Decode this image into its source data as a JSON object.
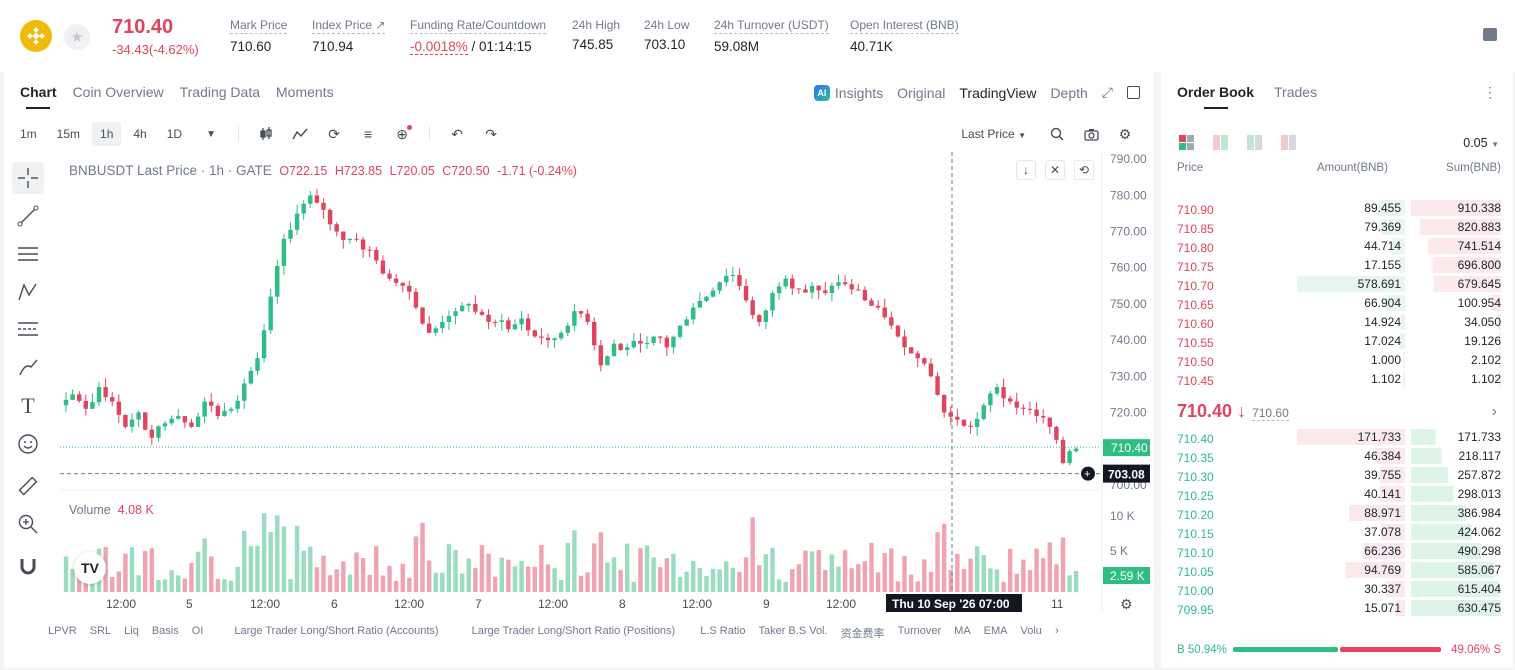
{
  "header": {
    "last_price": "710.40",
    "change": "-34.43(-4.62%)",
    "stats": [
      {
        "label": "Mark Price",
        "value": "710.60"
      },
      {
        "label": "Index Price ↗",
        "value": "710.94"
      },
      {
        "label": "Funding Rate/Countdown",
        "value_red": "-0.0018%",
        "value": " / 01:14:15"
      },
      {
        "label": "24h High",
        "value": "745.85"
      },
      {
        "label": "24h Low",
        "value": "703.10"
      },
      {
        "label": "24h Turnover (USDT)",
        "value": "59.08M"
      },
      {
        "label": "Open Interest (BNB)",
        "value": "40.71K"
      }
    ]
  },
  "chart_tabs": [
    "Chart",
    "Coin Overview",
    "Trading Data",
    "Moments"
  ],
  "view_tabs": [
    "Insights",
    "Original",
    "TradingView",
    "Depth"
  ],
  "ai_badge": "AI",
  "intervals": [
    "1m",
    "15m",
    "1h",
    "4h",
    "1D"
  ],
  "price_type": "Last Price",
  "ohlc": {
    "symbol": "BNBUSDT Last Price · 1h · GATE",
    "o": "O722.15",
    "h": "H723.85",
    "l": "L720.05",
    "c": "C720.50",
    "chg": "-1.71 (-0.24%)"
  },
  "volume_label": "Volume",
  "volume_value": "4.08 K",
  "tv_logo": "TV",
  "chart_data": {
    "type": "candlestick",
    "y_ticks": [
      "790.00",
      "780.00",
      "770.00",
      "760.00",
      "750.00",
      "740.00",
      "730.00",
      "720.00",
      "710.00",
      "700.00"
    ],
    "last_price_label": "710.40",
    "crosshair_price": "703.08",
    "vol_ticks": [
      "10 K",
      "5 K"
    ],
    "vol_last": "2.59 K",
    "x_ticks": [
      "12:00",
      "5",
      "12:00",
      "6",
      "12:00",
      "7",
      "12:00",
      "8",
      "12:00",
      "9",
      "12:00",
      "10",
      "11"
    ],
    "crosshair_time": "Thu 10 Sep '26   07:00",
    "close_path": [
      722,
      725,
      721,
      727,
      723,
      716,
      720,
      713,
      717,
      719,
      716,
      723,
      719,
      721,
      728,
      735,
      752,
      768,
      775,
      780,
      776,
      770,
      768,
      765,
      762,
      757,
      755,
      749,
      742,
      745,
      748,
      750,
      747,
      745,
      743,
      746,
      741,
      740,
      742,
      748,
      745,
      733,
      739,
      738,
      739,
      741,
      738,
      744,
      749,
      752,
      756,
      758,
      751,
      745,
      753,
      757,
      754,
      755,
      753,
      756,
      754,
      751,
      749,
      744,
      738,
      735,
      730,
      720,
      718,
      716,
      722,
      727,
      723,
      721,
      719,
      716,
      706,
      710
    ]
  },
  "indicators": [
    "LPVR",
    "SRL",
    "Liq",
    "Basis",
    "OI",
    "Large Trader Long/Short Ratio (Accounts)",
    "Large Trader Long/Short Ratio (Positions)",
    "L.S Ratio",
    "Taker B.S Vol.",
    "资金费率",
    "Turnover",
    "MA",
    "EMA",
    "Volu"
  ],
  "orderbook": {
    "tabs": [
      "Order Book",
      "Trades"
    ],
    "tick": "0.05",
    "headers": [
      "Price",
      "Amount(BNB)",
      "Sum(BNB)"
    ],
    "asks": [
      {
        "price": "710.90",
        "amount": "89.455",
        "sum": "910.338",
        "af": 0.25,
        "sf": 1.0
      },
      {
        "price": "710.85",
        "amount": "79.369",
        "sum": "820.883",
        "af": 0.22,
        "sf": 0.9
      },
      {
        "price": "710.80",
        "amount": "44.714",
        "sum": "741.514",
        "af": 0.12,
        "sf": 0.81
      },
      {
        "price": "710.75",
        "amount": "17.155",
        "sum": "696.800",
        "af": 0.05,
        "sf": 0.76
      },
      {
        "price": "710.70",
        "amount": "578.691",
        "sum": "679.645",
        "af": 1.0,
        "sf": 0.75
      },
      {
        "price": "710.65",
        "amount": "66.904",
        "sum": "100.954",
        "af": 0.18,
        "sf": 0.11
      },
      {
        "price": "710.60",
        "amount": "14.924",
        "sum": "34.050",
        "af": 0.04,
        "sf": 0.04
      },
      {
        "price": "710.55",
        "amount": "17.024",
        "sum": "19.126",
        "af": 0.05,
        "sf": 0.02
      },
      {
        "price": "710.50",
        "amount": "1.000",
        "sum": "2.102",
        "af": 0.0,
        "sf": 0.0
      },
      {
        "price": "710.45",
        "amount": "1.102",
        "sum": "1.102",
        "af": 0.0,
        "sf": 0.0
      }
    ],
    "mid_price": "710.40 ↓",
    "mark_price": "710.60",
    "bids": [
      {
        "price": "710.40",
        "amount": "171.733",
        "sum": "171.733",
        "af": 1.0,
        "sf": 0.27
      },
      {
        "price": "710.35",
        "amount": "46.384",
        "sum": "218.117",
        "af": 0.27,
        "sf": 0.34
      },
      {
        "price": "710.30",
        "amount": "39.755",
        "sum": "257.872",
        "af": 0.23,
        "sf": 0.41
      },
      {
        "price": "710.25",
        "amount": "40.141",
        "sum": "298.013",
        "af": 0.23,
        "sf": 0.47
      },
      {
        "price": "710.20",
        "amount": "88.971",
        "sum": "386.984",
        "af": 0.52,
        "sf": 0.61
      },
      {
        "price": "710.15",
        "amount": "37.078",
        "sum": "424.062",
        "af": 0.22,
        "sf": 0.67
      },
      {
        "price": "710.10",
        "amount": "66.236",
        "sum": "490.298",
        "af": 0.39,
        "sf": 0.78
      },
      {
        "price": "710.05",
        "amount": "94.769",
        "sum": "585.067",
        "af": 0.55,
        "sf": 0.93
      },
      {
        "price": "710.00",
        "amount": "30.337",
        "sum": "615.404",
        "af": 0.18,
        "sf": 0.98
      },
      {
        "price": "709.95",
        "amount": "15.071",
        "sum": "630.475",
        "af": 0.09,
        "sf": 1.0
      }
    ],
    "buy_ratio": "B 50.94%",
    "sell_ratio": "49.06% S",
    "buy_fraction": 0.5094
  }
}
